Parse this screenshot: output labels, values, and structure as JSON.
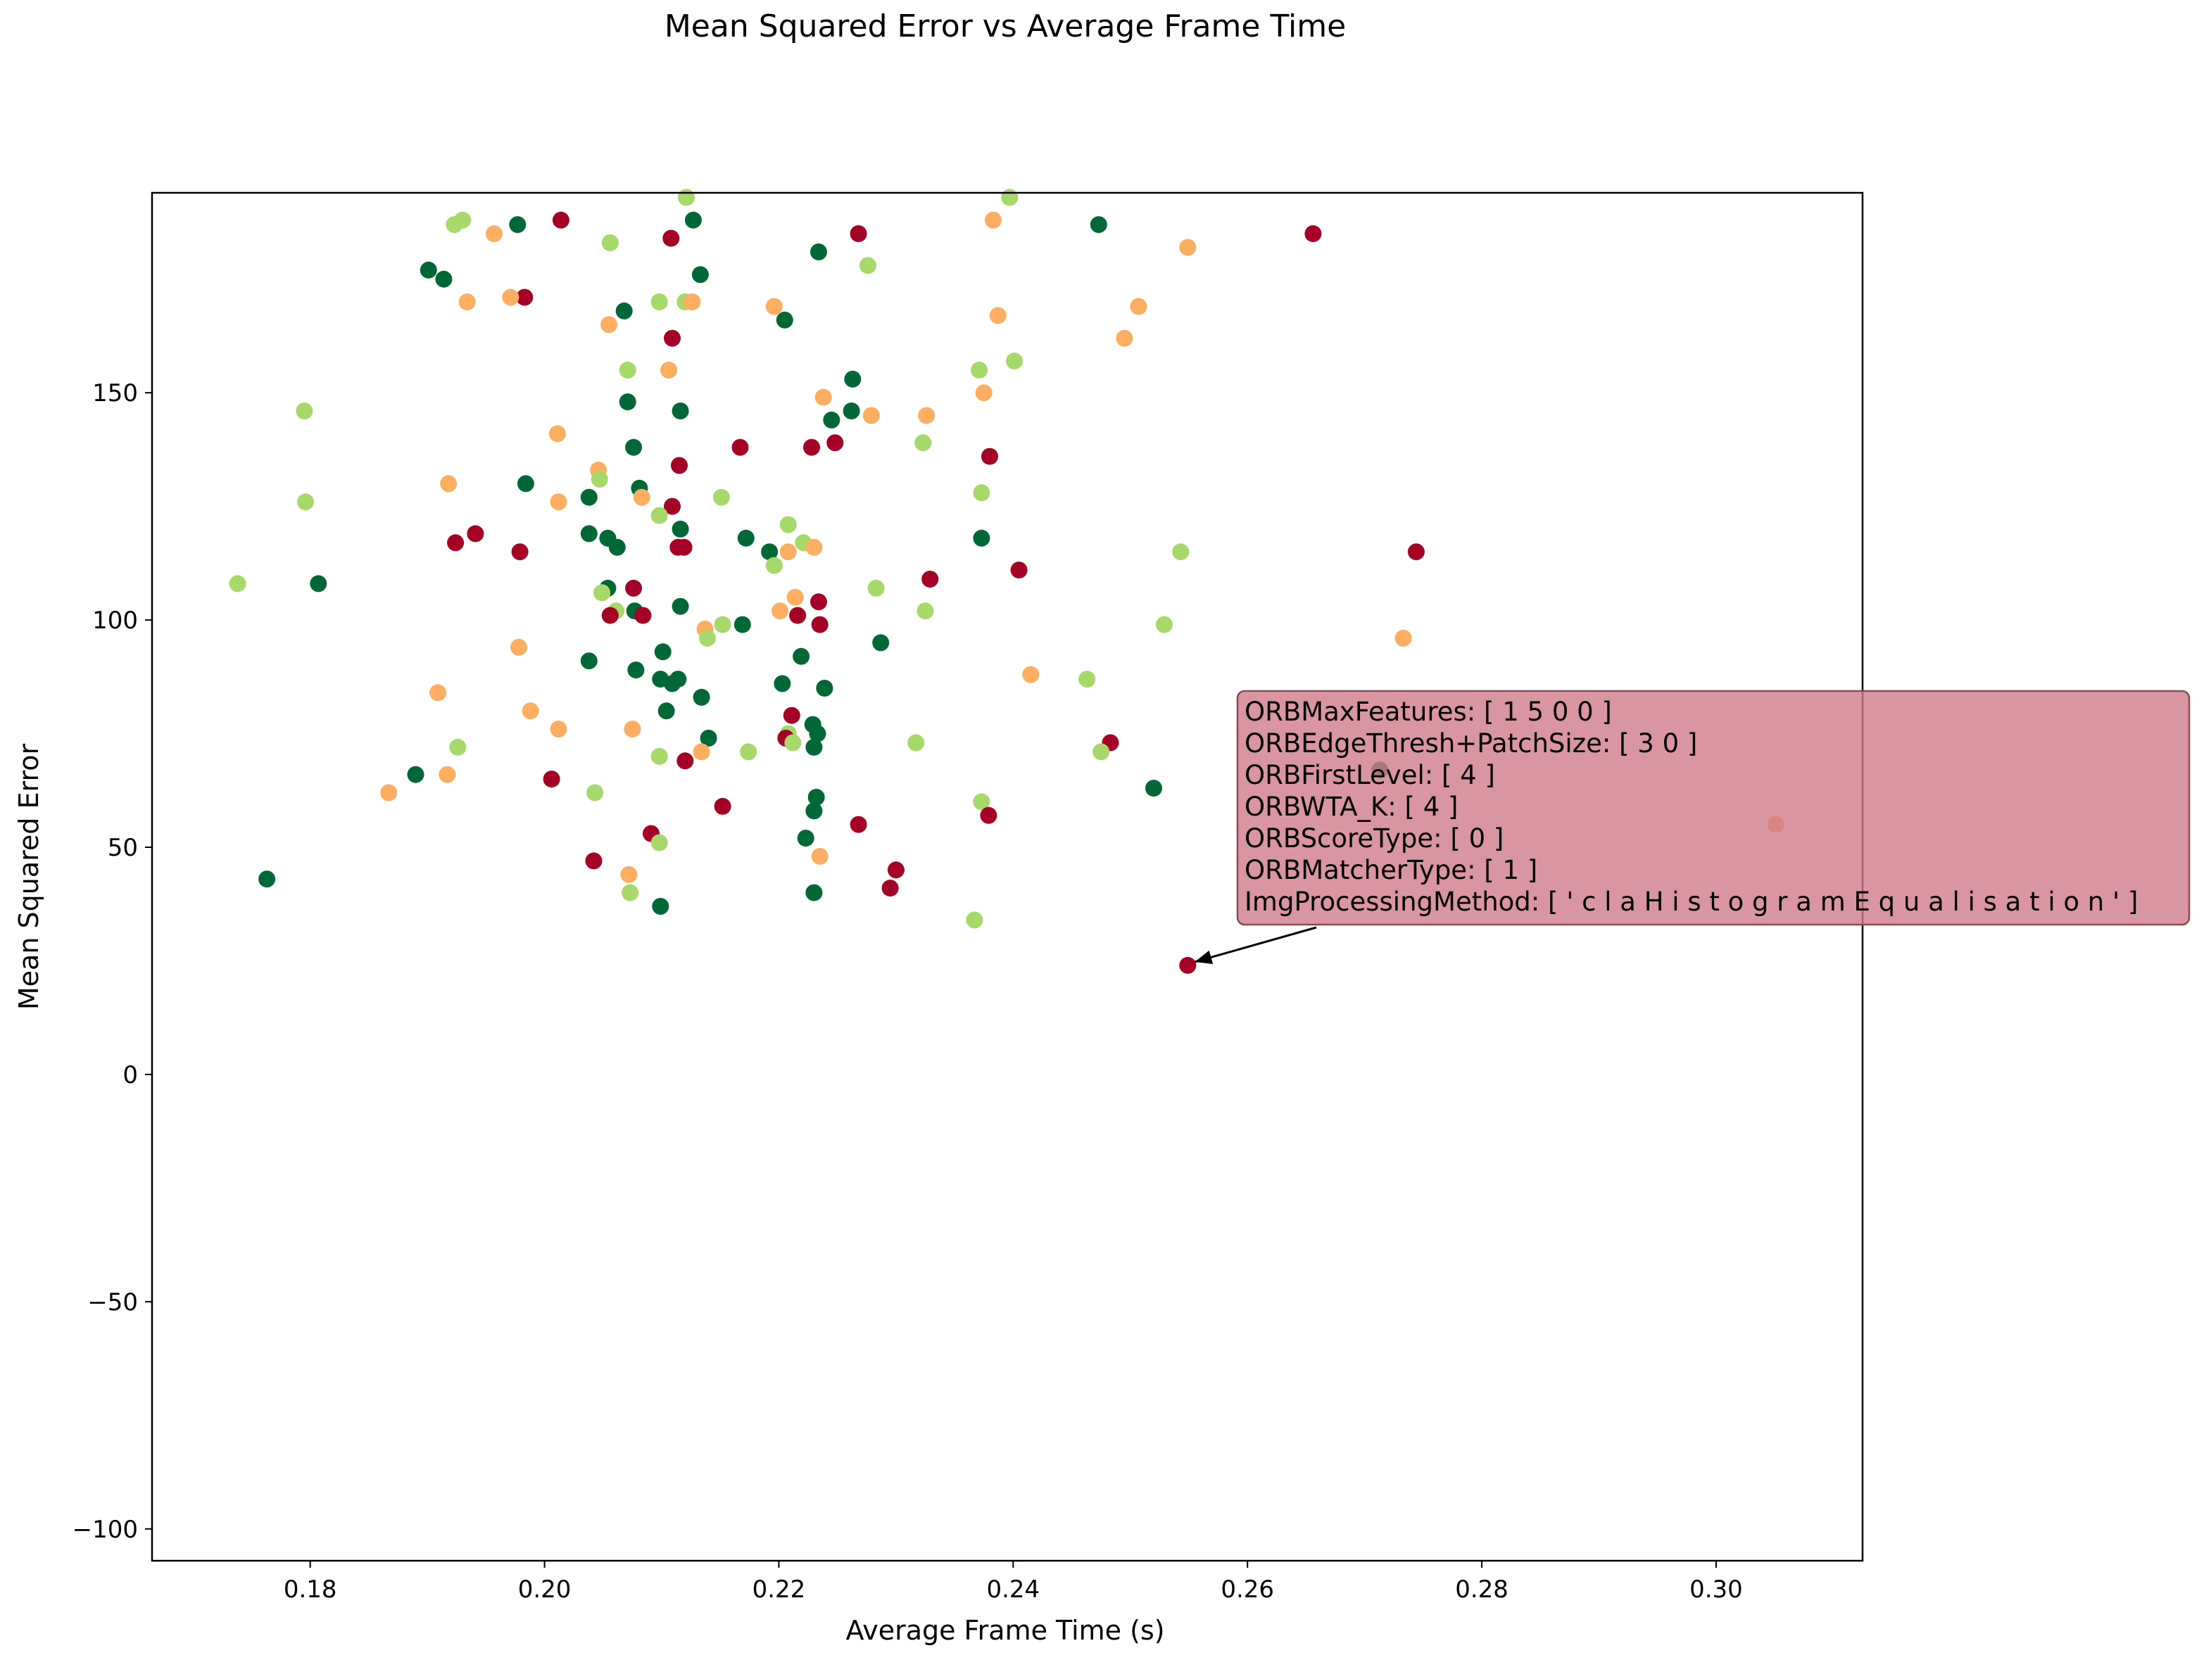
{
  "chart_data": {
    "type": "scatter",
    "title": "Mean Squared Error vs Average Frame Time",
    "xlabel": "Average Frame Time (s)",
    "ylabel": "Mean Squared Error",
    "xlim": [
      0.1665,
      0.3125
    ],
    "ylim": [
      -107,
      194
    ],
    "xticks": [
      0.18,
      0.2,
      0.22,
      0.24,
      0.26,
      0.28,
      0.3
    ],
    "yticks": [
      -100,
      -50,
      0,
      50,
      100,
      150
    ],
    "grid": false,
    "legend": "none",
    "colors": [
      "#006837",
      "#a6d96a",
      "#fdae61",
      "#a50026"
    ],
    "points": [
      {
        "x": 0.2121,
        "y": 193,
        "c": 1
      },
      {
        "x": 0.2397,
        "y": 193,
        "c": 1
      },
      {
        "x": 0.2014,
        "y": 188,
        "c": 3
      },
      {
        "x": 0.2127,
        "y": 188,
        "c": 0
      },
      {
        "x": 0.1977,
        "y": 187,
        "c": 0
      },
      {
        "x": 0.1923,
        "y": 187,
        "c": 1
      },
      {
        "x": 0.193,
        "y": 188,
        "c": 1
      },
      {
        "x": 0.2383,
        "y": 188,
        "c": 2
      },
      {
        "x": 0.2473,
        "y": 187,
        "c": 0
      },
      {
        "x": 0.1957,
        "y": 185,
        "c": 2
      },
      {
        "x": 0.2268,
        "y": 185,
        "c": 3
      },
      {
        "x": 0.2108,
        "y": 184,
        "c": 3
      },
      {
        "x": 0.2656,
        "y": 185,
        "c": 3
      },
      {
        "x": 0.2056,
        "y": 183,
        "c": 1
      },
      {
        "x": 0.2234,
        "y": 181,
        "c": 0
      },
      {
        "x": 0.2549,
        "y": 182,
        "c": 2
      },
      {
        "x": 0.2276,
        "y": 178,
        "c": 1
      },
      {
        "x": 0.1901,
        "y": 177,
        "c": 0
      },
      {
        "x": 0.1914,
        "y": 175,
        "c": 0
      },
      {
        "x": 0.2133,
        "y": 176,
        "c": 0
      },
      {
        "x": 0.1983,
        "y": 171,
        "c": 3
      },
      {
        "x": 0.1971,
        "y": 171,
        "c": 2
      },
      {
        "x": 0.1934,
        "y": 170,
        "c": 2
      },
      {
        "x": 0.2098,
        "y": 170,
        "c": 1
      },
      {
        "x": 0.212,
        "y": 170,
        "c": 1
      },
      {
        "x": 0.2126,
        "y": 170,
        "c": 2
      },
      {
        "x": 0.2196,
        "y": 169,
        "c": 2
      },
      {
        "x": 0.2507,
        "y": 169,
        "c": 2
      },
      {
        "x": 0.2068,
        "y": 168,
        "c": 0
      },
      {
        "x": 0.2387,
        "y": 167,
        "c": 2
      },
      {
        "x": 0.2055,
        "y": 165,
        "c": 2
      },
      {
        "x": 0.2205,
        "y": 166,
        "c": 0
      },
      {
        "x": 0.2109,
        "y": 162,
        "c": 3
      },
      {
        "x": 0.2495,
        "y": 162,
        "c": 2
      },
      {
        "x": 0.2401,
        "y": 157,
        "c": 1
      },
      {
        "x": 0.2071,
        "y": 155,
        "c": 1
      },
      {
        "x": 0.2106,
        "y": 155,
        "c": 2
      },
      {
        "x": 0.2371,
        "y": 155,
        "c": 1
      },
      {
        "x": 0.2263,
        "y": 153,
        "c": 0
      },
      {
        "x": 0.2375,
        "y": 150,
        "c": 2
      },
      {
        "x": 0.2238,
        "y": 149,
        "c": 2
      },
      {
        "x": 0.2071,
        "y": 148,
        "c": 0
      },
      {
        "x": 0.1795,
        "y": 146,
        "c": 1
      },
      {
        "x": 0.2262,
        "y": 146,
        "c": 0
      },
      {
        "x": 0.2116,
        "y": 146,
        "c": 0
      },
      {
        "x": 0.2245,
        "y": 144,
        "c": 0
      },
      {
        "x": 0.2279,
        "y": 145,
        "c": 2
      },
      {
        "x": 0.2326,
        "y": 145,
        "c": 2
      },
      {
        "x": 0.2011,
        "y": 141,
        "c": 2
      },
      {
        "x": 0.2323,
        "y": 139,
        "c": 1
      },
      {
        "x": 0.2076,
        "y": 138,
        "c": 0
      },
      {
        "x": 0.2167,
        "y": 138,
        "c": 3
      },
      {
        "x": 0.2228,
        "y": 138,
        "c": 3
      },
      {
        "x": 0.2248,
        "y": 139,
        "c": 3
      },
      {
        "x": 0.238,
        "y": 136,
        "c": 3
      },
      {
        "x": 0.2115,
        "y": 134,
        "c": 3
      },
      {
        "x": 0.2046,
        "y": 133,
        "c": 2
      },
      {
        "x": 0.2047,
        "y": 131,
        "c": 1
      },
      {
        "x": 0.1984,
        "y": 130,
        "c": 0
      },
      {
        "x": 0.1918,
        "y": 130,
        "c": 2
      },
      {
        "x": 0.2081,
        "y": 129,
        "c": 0
      },
      {
        "x": 0.2373,
        "y": 128,
        "c": 1
      },
      {
        "x": 0.2151,
        "y": 127,
        "c": 1
      },
      {
        "x": 0.2038,
        "y": 127,
        "c": 0
      },
      {
        "x": 0.2083,
        "y": 127,
        "c": 2
      },
      {
        "x": 0.2012,
        "y": 126,
        "c": 2
      },
      {
        "x": 0.1796,
        "y": 126,
        "c": 1
      },
      {
        "x": 0.2109,
        "y": 125,
        "c": 3
      },
      {
        "x": 0.2098,
        "y": 123,
        "c": 1
      },
      {
        "x": 0.2208,
        "y": 121,
        "c": 1
      },
      {
        "x": 0.2116,
        "y": 120,
        "c": 0
      },
      {
        "x": 0.1941,
        "y": 119,
        "c": 3
      },
      {
        "x": 0.2038,
        "y": 119,
        "c": 0
      },
      {
        "x": 0.2054,
        "y": 118,
        "c": 0
      },
      {
        "x": 0.2373,
        "y": 118,
        "c": 0
      },
      {
        "x": 0.2172,
        "y": 118,
        "c": 0
      },
      {
        "x": 0.2221,
        "y": 117,
        "c": 1
      },
      {
        "x": 0.1924,
        "y": 117,
        "c": 3
      },
      {
        "x": 0.2062,
        "y": 116,
        "c": 0
      },
      {
        "x": 0.223,
        "y": 116,
        "c": 2
      },
      {
        "x": 0.2114,
        "y": 116,
        "c": 3
      },
      {
        "x": 0.2119,
        "y": 116,
        "c": 3
      },
      {
        "x": 0.2208,
        "y": 115,
        "c": 2
      },
      {
        "x": 0.1979,
        "y": 115,
        "c": 3
      },
      {
        "x": 0.2192,
        "y": 115,
        "c": 0
      },
      {
        "x": 0.2543,
        "y": 115,
        "c": 1
      },
      {
        "x": 0.2744,
        "y": 115,
        "c": 3
      },
      {
        "x": 0.2196,
        "y": 112,
        "c": 1
      },
      {
        "x": 0.2405,
        "y": 111,
        "c": 3
      },
      {
        "x": 0.2329,
        "y": 109,
        "c": 3
      },
      {
        "x": 0.1738,
        "y": 108,
        "c": 1
      },
      {
        "x": 0.1807,
        "y": 108,
        "c": 0
      },
      {
        "x": 0.2283,
        "y": 107,
        "c": 1
      },
      {
        "x": 0.2076,
        "y": 107,
        "c": 3
      },
      {
        "x": 0.2054,
        "y": 107,
        "c": 0
      },
      {
        "x": 0.2049,
        "y": 106,
        "c": 1
      },
      {
        "x": 0.2214,
        "y": 105,
        "c": 2
      },
      {
        "x": 0.2234,
        "y": 104,
        "c": 3
      },
      {
        "x": 0.2116,
        "y": 103,
        "c": 0
      },
      {
        "x": 0.2325,
        "y": 102,
        "c": 1
      },
      {
        "x": 0.2061,
        "y": 102,
        "c": 1
      },
      {
        "x": 0.2077,
        "y": 102,
        "c": 0
      },
      {
        "x": 0.2201,
        "y": 102,
        "c": 2
      },
      {
        "x": 0.2216,
        "y": 101,
        "c": 3
      },
      {
        "x": 0.2056,
        "y": 101,
        "c": 3
      },
      {
        "x": 0.2084,
        "y": 101,
        "c": 3
      },
      {
        "x": 0.2529,
        "y": 99,
        "c": 1
      },
      {
        "x": 0.2152,
        "y": 99,
        "c": 1
      },
      {
        "x": 0.2169,
        "y": 99,
        "c": 0
      },
      {
        "x": 0.2235,
        "y": 99,
        "c": 3
      },
      {
        "x": 0.2137,
        "y": 98,
        "c": 2
      },
      {
        "x": 0.2139,
        "y": 96,
        "c": 1
      },
      {
        "x": 0.2733,
        "y": 96,
        "c": 2
      },
      {
        "x": 0.2287,
        "y": 95,
        "c": 0
      },
      {
        "x": 0.1978,
        "y": 94,
        "c": 2
      },
      {
        "x": 0.2101,
        "y": 93,
        "c": 0
      },
      {
        "x": 0.2219,
        "y": 92,
        "c": 0
      },
      {
        "x": 0.2038,
        "y": 91,
        "c": 0
      },
      {
        "x": 0.2078,
        "y": 89,
        "c": 0
      },
      {
        "x": 0.2415,
        "y": 88,
        "c": 2
      },
      {
        "x": 0.2463,
        "y": 87,
        "c": 1
      },
      {
        "x": 0.2099,
        "y": 87,
        "c": 0
      },
      {
        "x": 0.2109,
        "y": 86,
        "c": 0
      },
      {
        "x": 0.2114,
        "y": 87,
        "c": 0
      },
      {
        "x": 0.2203,
        "y": 86,
        "c": 0
      },
      {
        "x": 0.2239,
        "y": 85,
        "c": 0
      },
      {
        "x": 0.1909,
        "y": 84,
        "c": 2
      },
      {
        "x": 0.2134,
        "y": 83,
        "c": 0
      },
      {
        "x": 0.2104,
        "y": 80,
        "c": 0
      },
      {
        "x": 0.1988,
        "y": 80,
        "c": 2
      },
      {
        "x": 0.2211,
        "y": 79,
        "c": 3
      },
      {
        "x": 0.2229,
        "y": 77,
        "c": 0
      },
      {
        "x": 0.2012,
        "y": 76,
        "c": 2
      },
      {
        "x": 0.2075,
        "y": 76,
        "c": 2
      },
      {
        "x": 0.2208,
        "y": 75,
        "c": 1
      },
      {
        "x": 0.2233,
        "y": 75,
        "c": 0
      },
      {
        "x": 0.2206,
        "y": 74,
        "c": 3
      },
      {
        "x": 0.214,
        "y": 74,
        "c": 0
      },
      {
        "x": 0.1926,
        "y": 72,
        "c": 1
      },
      {
        "x": 0.2317,
        "y": 73,
        "c": 1
      },
      {
        "x": 0.2212,
        "y": 73,
        "c": 1
      },
      {
        "x": 0.223,
        "y": 72,
        "c": 0
      },
      {
        "x": 0.2483,
        "y": 73,
        "c": 3
      },
      {
        "x": 0.2475,
        "y": 71,
        "c": 1
      },
      {
        "x": 0.2174,
        "y": 71,
        "c": 1
      },
      {
        "x": 0.2134,
        "y": 71,
        "c": 2
      },
      {
        "x": 0.2098,
        "y": 70,
        "c": 1
      },
      {
        "x": 0.212,
        "y": 69,
        "c": 3
      },
      {
        "x": 0.2713,
        "y": 67,
        "c": 0
      },
      {
        "x": 0.1917,
        "y": 66,
        "c": 2
      },
      {
        "x": 0.189,
        "y": 66,
        "c": 0
      },
      {
        "x": 0.2006,
        "y": 65,
        "c": 3
      },
      {
        "x": 0.252,
        "y": 63,
        "c": 0
      },
      {
        "x": 0.2043,
        "y": 62,
        "c": 1
      },
      {
        "x": 0.1867,
        "y": 62,
        "c": 2
      },
      {
        "x": 0.2232,
        "y": 61,
        "c": 0
      },
      {
        "x": 0.2373,
        "y": 60,
        "c": 1
      },
      {
        "x": 0.223,
        "y": 58,
        "c": 0
      },
      {
        "x": 0.2152,
        "y": 59,
        "c": 3
      },
      {
        "x": 0.2379,
        "y": 57,
        "c": 3
      },
      {
        "x": 0.2268,
        "y": 55,
        "c": 3
      },
      {
        "x": 0.3051,
        "y": 55,
        "c": 2
      },
      {
        "x": 0.2091,
        "y": 53,
        "c": 3
      },
      {
        "x": 0.2223,
        "y": 52,
        "c": 0
      },
      {
        "x": 0.2098,
        "y": 51,
        "c": 1
      },
      {
        "x": 0.2235,
        "y": 48,
        "c": 2
      },
      {
        "x": 0.2042,
        "y": 47,
        "c": 3
      },
      {
        "x": 0.23,
        "y": 45,
        "c": 3
      },
      {
        "x": 0.2072,
        "y": 44,
        "c": 2
      },
      {
        "x": 0.1763,
        "y": 43,
        "c": 0
      },
      {
        "x": 0.2295,
        "y": 41,
        "c": 3
      },
      {
        "x": 0.2073,
        "y": 40,
        "c": 1
      },
      {
        "x": 0.223,
        "y": 40,
        "c": 0
      },
      {
        "x": 0.2099,
        "y": 37,
        "c": 0
      },
      {
        "x": 0.2367,
        "y": 34,
        "c": 1
      },
      {
        "x": 0.2549,
        "y": 24,
        "c": 3
      }
    ],
    "annotation": {
      "x": 0.2549,
      "y": 24,
      "lines": [
        "ORBMaxFeatures: [ 1 5 0 0 ]",
        "ORBEdgeThresh+PatchSize: [ 3 0 ]",
        "ORBFirstLevel: [ 4 ]",
        "ORBWTA_K: [ 4 ]",
        "ORBScoreType: [ 0 ]",
        "ORBMatcherType: [ 1 ]",
        "ImgProcessingMethod: [ ' c l a H i s t o g r a m E q u a l i s a t i o n ' ]"
      ],
      "box_color": "#d17b8b"
    }
  }
}
